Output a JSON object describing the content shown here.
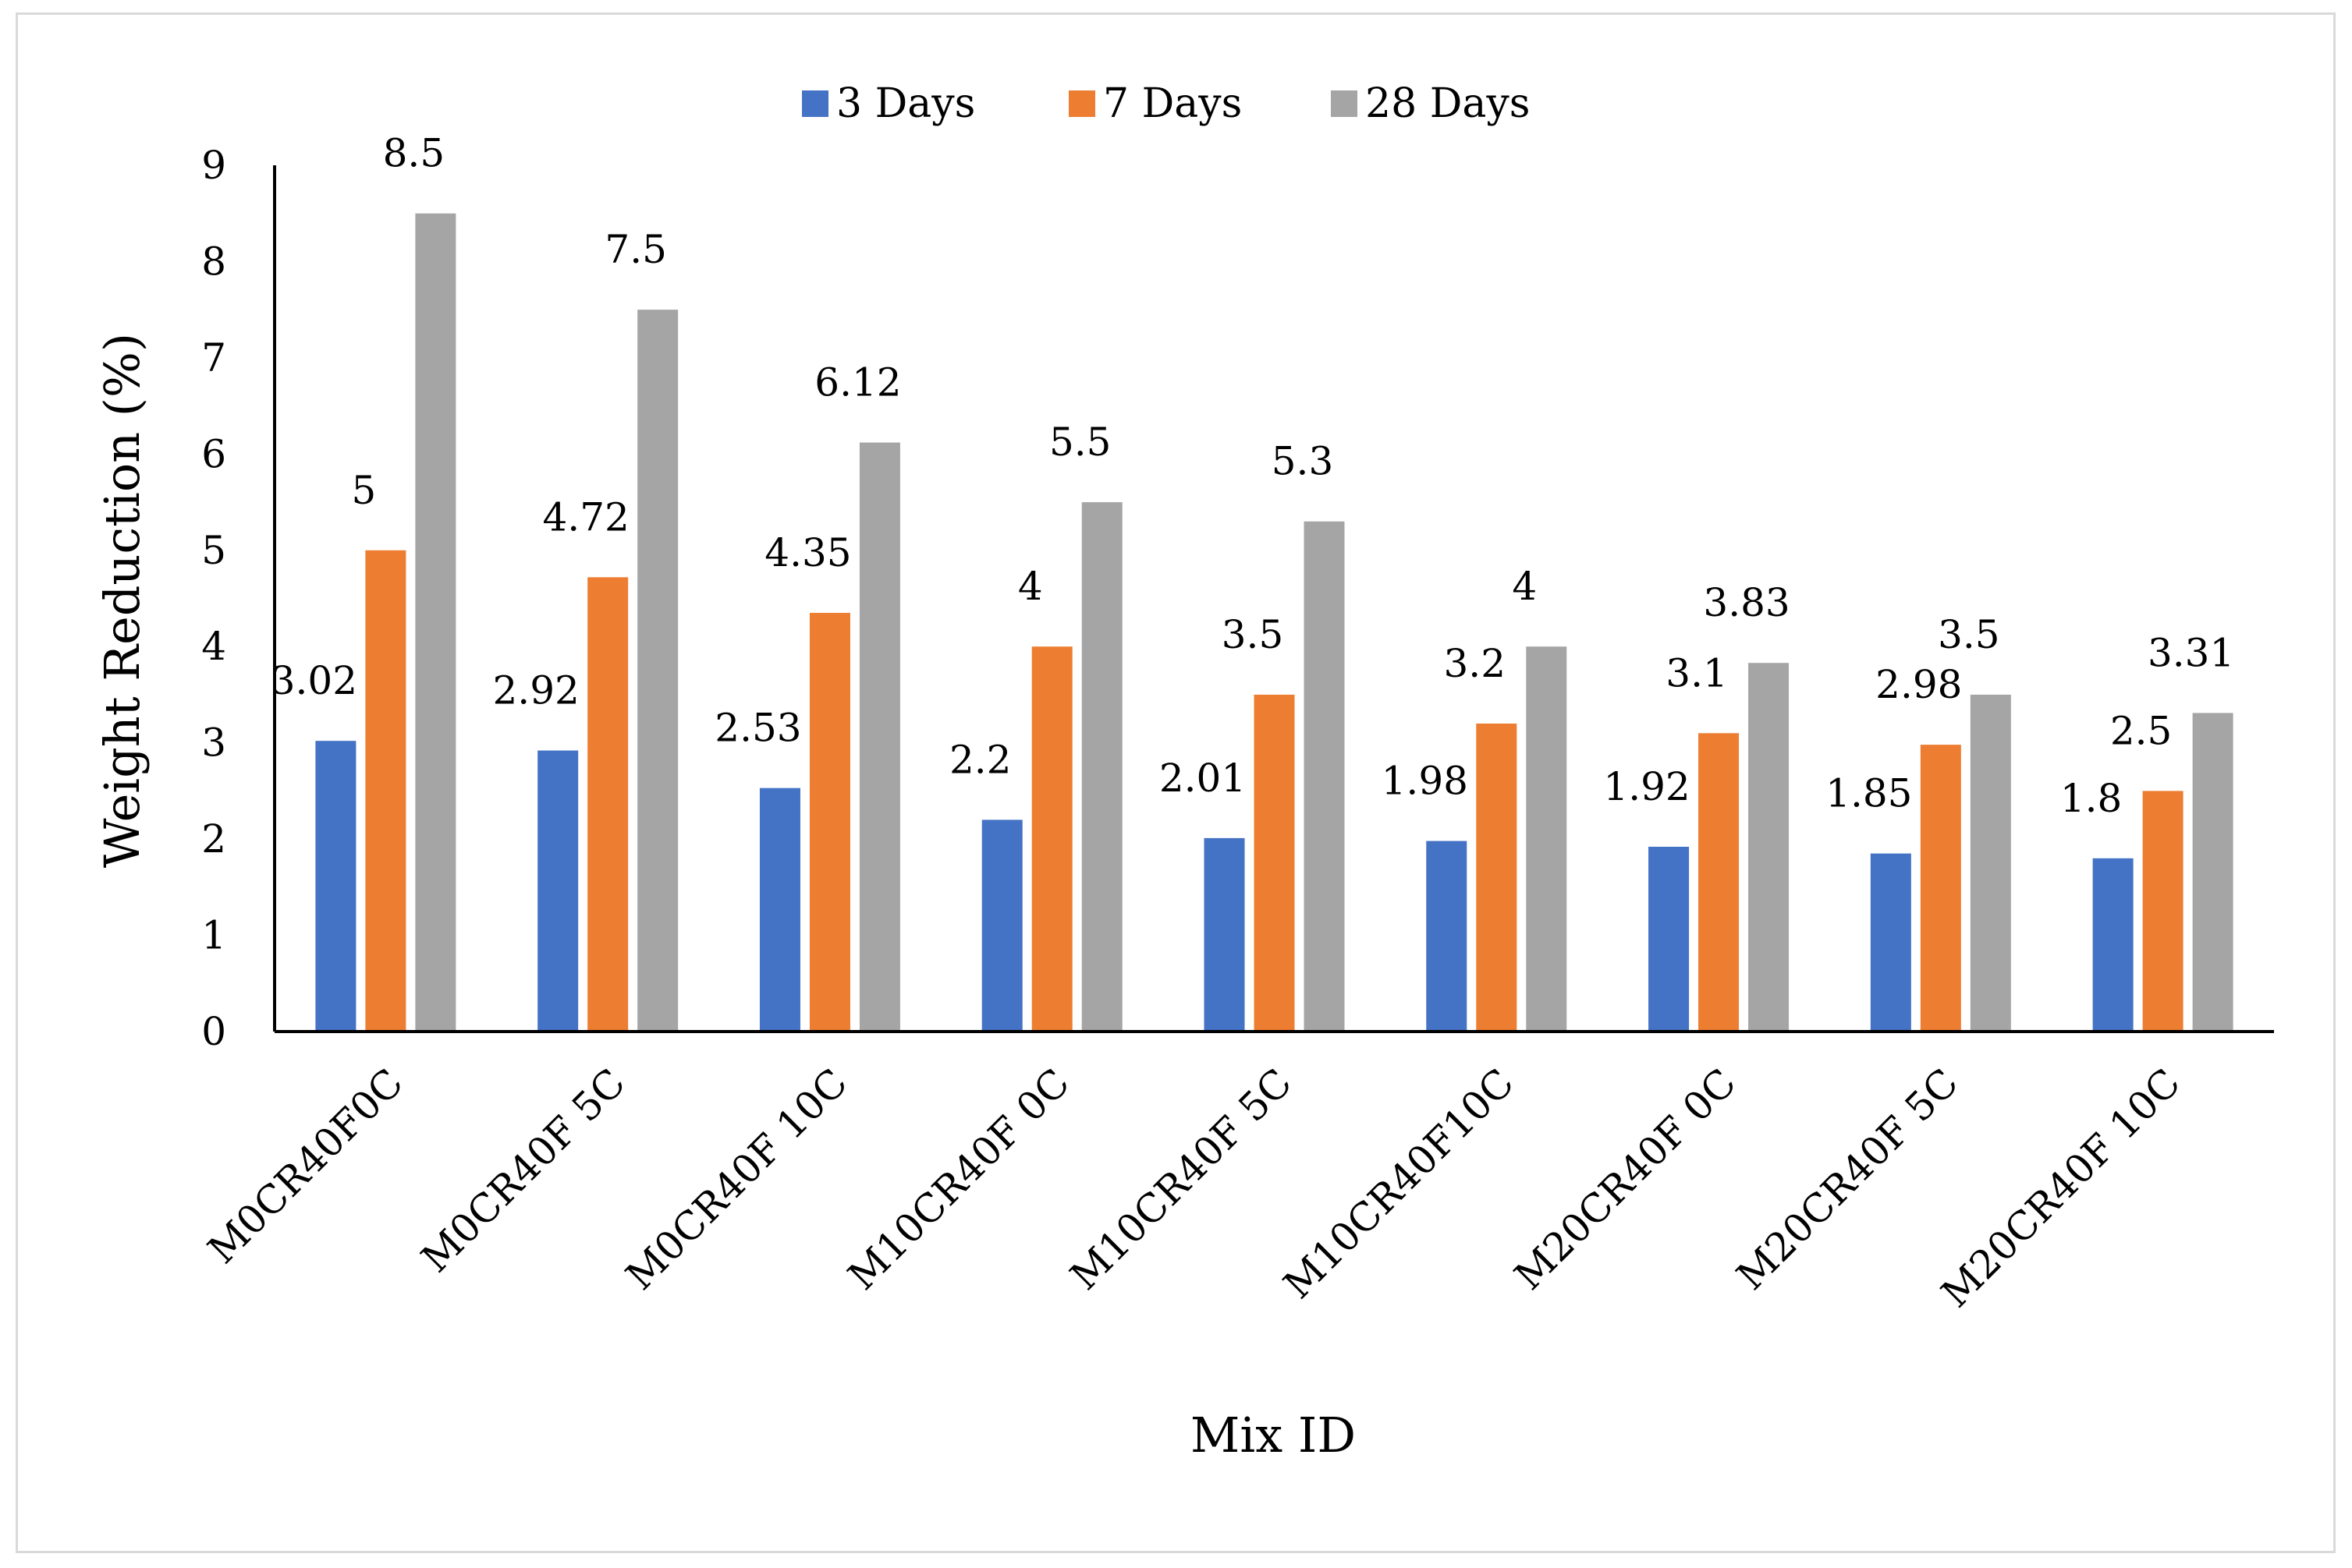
{
  "chart_data": {
    "type": "bar",
    "title": "",
    "xlabel": "Mix ID",
    "ylabel": "Weight Reduction (%)",
    "ylim": [
      0,
      9
    ],
    "yticks": [
      "0",
      "1",
      "2",
      "3",
      "4",
      "5",
      "6",
      "7",
      "8",
      "9"
    ],
    "grid": false,
    "legend_position": "top",
    "categories": [
      "M0CR40F0C",
      "M0CR40F 5C",
      "M0CR40F 10C",
      "M10CR40F 0C",
      "M10CR40F 5C",
      "M10CR40F10C",
      "M20CR40F 0C",
      "M20CR40F 5C",
      "M20CR40F 10C"
    ],
    "series": [
      {
        "name": "3 Days",
        "color": "#4472c4",
        "values": [
          3.02,
          2.92,
          2.53,
          2.2,
          2.01,
          1.98,
          1.92,
          1.85,
          1.8
        ],
        "labels": [
          "3.02",
          "2.92",
          "2.53",
          "2.2",
          "2.01",
          "1.98",
          "1.92",
          "1.85",
          "1.8"
        ]
      },
      {
        "name": "7 Days",
        "color": "#ed7d31",
        "values": [
          5,
          4.72,
          4.35,
          4,
          3.5,
          3.2,
          3.1,
          2.98,
          2.5
        ],
        "labels": [
          "5",
          "4.72",
          "4.35",
          "4",
          "3.5",
          "3.2",
          "3.1",
          "2.98",
          "2.5"
        ]
      },
      {
        "name": "28 Days",
        "color": "#a5a5a5",
        "values": [
          8.5,
          7.5,
          6.12,
          5.5,
          5.3,
          4,
          3.83,
          3.5,
          3.31
        ],
        "labels": [
          "8.5",
          "7.5",
          "6.12",
          "5.5",
          "5.3",
          "4",
          "3.83",
          "3.5",
          "3.31"
        ]
      }
    ]
  }
}
